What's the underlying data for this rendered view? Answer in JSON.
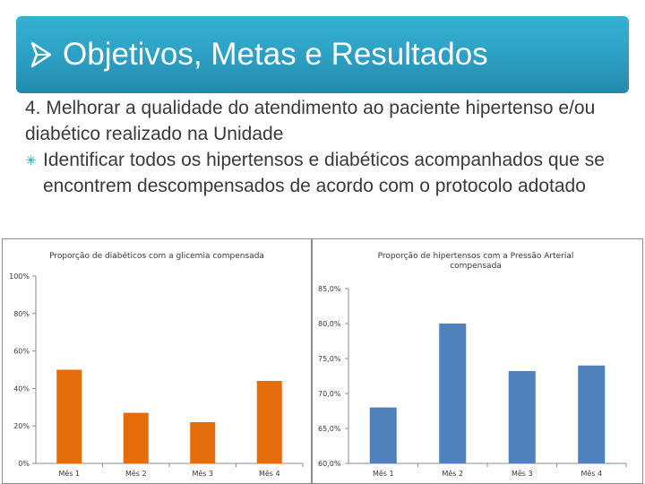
{
  "slide": {
    "title": "Objetivos, Metas e Resultados",
    "goal_line": "4. Melhorar a qualidade do atendimento ao paciente hipertenso e/ou diabético realizado na Unidade",
    "bullet_text": "Identificar todos os hipertensos e diabéticos acompanhados que se encontrem descompensados de acordo com o protocolo adotado",
    "colors": {
      "banner": "#2c9fc3",
      "title_text": "#ffffff",
      "body_text": "#3a3a3a",
      "bullet": "#2c9fc3"
    },
    "icons": {
      "title_bullet": "arrow-bullet-icon",
      "list_bullet": "asterisk-bullet-icon"
    }
  },
  "chart_data": [
    {
      "type": "bar",
      "title": "Proporção de diabéticos com a glicemia compensada",
      "categories": [
        "Mês 1",
        "Mês 2",
        "Mês 3",
        "Mês 4"
      ],
      "values": [
        50,
        27,
        22,
        44
      ],
      "ylim": [
        0,
        100
      ],
      "yticks": [
        "0%",
        "20%",
        "40%",
        "60%",
        "80%",
        "100%"
      ],
      "ytick_values": [
        0,
        20,
        40,
        60,
        80,
        100
      ],
      "color": "#e46c0a",
      "grid": false,
      "legend": "none"
    },
    {
      "type": "bar",
      "title": "Proporção de hipertensos com a Pressão Arterial compensada",
      "categories": [
        "Mês 1",
        "Mês 2",
        "Mês 3",
        "Mês 4"
      ],
      "values": [
        68.0,
        80.0,
        73.2,
        74.0
      ],
      "ylim": [
        60,
        85
      ],
      "yticks": [
        "60,0%",
        "65,0%",
        "70,0%",
        "75,0%",
        "80,0%",
        "85,0%"
      ],
      "ytick_values": [
        60,
        65,
        70,
        75,
        80,
        85
      ],
      "color": "#4f81bd",
      "grid": false,
      "legend": "none"
    }
  ]
}
